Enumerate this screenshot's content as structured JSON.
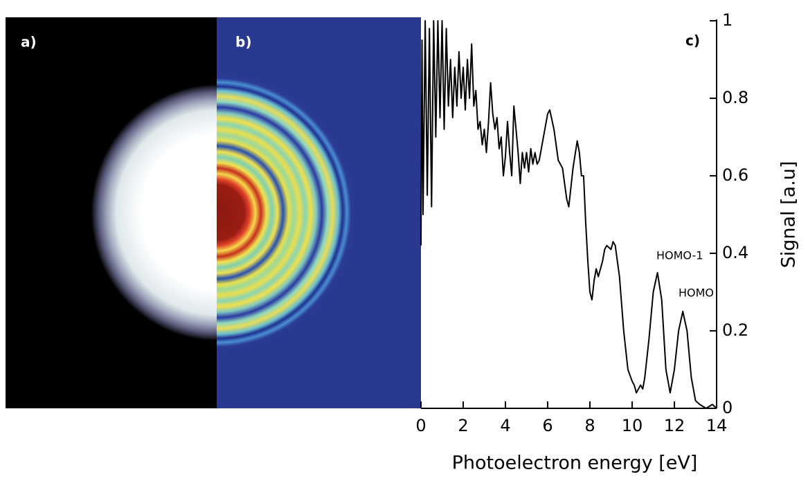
{
  "chart_data": {
    "type": "line",
    "panel_labels": [
      "a)",
      "b)",
      "c)"
    ],
    "x_label": "Photoelectron energy [eV]",
    "y_label": "Signal [a.u]",
    "annotations": [
      "HOMO-1",
      "HOMO"
    ],
    "x": [
      0.0,
      0.05,
      0.1,
      0.2,
      0.3,
      0.4,
      0.5,
      0.6,
      0.7,
      0.8,
      0.9,
      1.0,
      1.1,
      1.2,
      1.3,
      1.4,
      1.5,
      1.6,
      1.7,
      1.8,
      1.9,
      2.0,
      2.1,
      2.2,
      2.3,
      2.4,
      2.5,
      2.6,
      2.7,
      2.8,
      2.9,
      3.0,
      3.1,
      3.2,
      3.3,
      3.4,
      3.5,
      3.6,
      3.7,
      3.8,
      3.9,
      4.0,
      4.1,
      4.2,
      4.3,
      4.4,
      4.5,
      4.6,
      4.7,
      4.8,
      4.9,
      5.0,
      5.1,
      5.2,
      5.3,
      5.4,
      5.5,
      5.6,
      5.8,
      6.0,
      6.1,
      6.3,
      6.5,
      6.7,
      6.9,
      7.0,
      7.2,
      7.4,
      7.5,
      7.6,
      7.7,
      7.8,
      7.9,
      8.0,
      8.1,
      8.2,
      8.3,
      8.4,
      8.6,
      8.7,
      8.8,
      9.0,
      9.1,
      9.2,
      9.4,
      9.6,
      9.8,
      10.0,
      10.1,
      10.2,
      10.4,
      10.5,
      10.6,
      10.8,
      11.0,
      11.2,
      11.4,
      11.6,
      11.8,
      12.0,
      12.2,
      12.4,
      12.6,
      12.8,
      13.0,
      13.2,
      13.5,
      13.8,
      14.0
    ],
    "series": [
      {
        "color": "#000000",
        "values": [
          0.42,
          0.95,
          0.5,
          1.0,
          0.55,
          0.98,
          0.52,
          1.0,
          0.7,
          1.0,
          0.75,
          1.0,
          0.72,
          0.98,
          0.78,
          0.9,
          0.75,
          0.88,
          0.78,
          0.92,
          0.8,
          0.88,
          0.77,
          0.9,
          0.8,
          0.94,
          0.78,
          0.82,
          0.72,
          0.74,
          0.68,
          0.72,
          0.66,
          0.74,
          0.84,
          0.76,
          0.72,
          0.75,
          0.67,
          0.7,
          0.6,
          0.65,
          0.74,
          0.66,
          0.6,
          0.78,
          0.72,
          0.66,
          0.58,
          0.66,
          0.62,
          0.66,
          0.61,
          0.67,
          0.63,
          0.66,
          0.63,
          0.64,
          0.7,
          0.76,
          0.77,
          0.72,
          0.64,
          0.62,
          0.54,
          0.52,
          0.62,
          0.69,
          0.66,
          0.6,
          0.6,
          0.48,
          0.38,
          0.3,
          0.28,
          0.33,
          0.36,
          0.34,
          0.38,
          0.41,
          0.42,
          0.41,
          0.43,
          0.42,
          0.34,
          0.2,
          0.1,
          0.07,
          0.06,
          0.04,
          0.06,
          0.05,
          0.08,
          0.18,
          0.3,
          0.35,
          0.28,
          0.1,
          0.04,
          0.1,
          0.2,
          0.25,
          0.2,
          0.08,
          0.02,
          0.01,
          0.0,
          0.01,
          0.0
        ]
      }
    ],
    "xlim": [
      0,
      14
    ],
    "ylim": [
      0,
      1
    ],
    "xticks": [
      0,
      2,
      4,
      6,
      8,
      10,
      12,
      14
    ],
    "yticks": [
      0,
      0.2,
      0.4,
      0.6,
      0.8,
      1
    ]
  }
}
